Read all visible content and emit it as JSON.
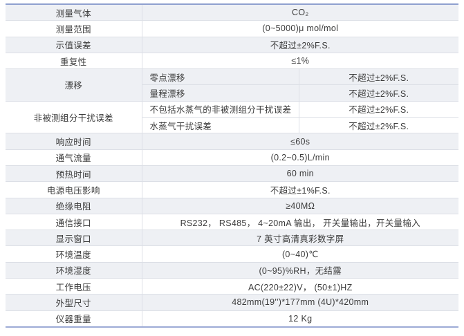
{
  "accent": {
    "line_color": "#8fa0cf",
    "band_color": "#eef0f4",
    "text_color": "#3b3b3b"
  },
  "table": {
    "rows": [
      {
        "label": "测量气体",
        "value": "CO₂"
      },
      {
        "label": "测量范围",
        "value": "(0~5000)μ mol/mol"
      },
      {
        "label": "示值误差",
        "value": "不超过±2%F.S."
      },
      {
        "label": "重复性",
        "value": "≤1%"
      },
      {
        "label": "漂移",
        "subrows": [
          {
            "name": "零点漂移",
            "value": "不超过±2%F.S."
          },
          {
            "name": "量程漂移",
            "value": "不超过±2%F.S."
          }
        ]
      },
      {
        "label": "非被测组分干扰误差",
        "subrows": [
          {
            "name": "不包括水蒸气的非被测组分干扰误差",
            "value": "不超过±2%F.S."
          },
          {
            "name": "水蒸气干扰误差",
            "value": "不超过±2%F.S."
          }
        ]
      },
      {
        "label": "响应时间",
        "value": "≤60s"
      },
      {
        "label": "通气流量",
        "value": "(0.2~0.5)L/min"
      },
      {
        "label": "预热时间",
        "value": "60 min"
      },
      {
        "label": "电源电压影响",
        "value": "不超过±1%F.S."
      },
      {
        "label": "绝缘电阻",
        "value": "≥40MΩ"
      },
      {
        "label": "通信接口",
        "value": "RS232， RS485， 4~20mA 输出， 开关量输出，开关量输入"
      },
      {
        "label": "显示窗口",
        "value": "7 英寸高清真彩数字屏"
      },
      {
        "label": "环境温度",
        "value": "(0~40)℃"
      },
      {
        "label": "环境湿度",
        "value": "(0~95)%RH，无结露"
      },
      {
        "label": "工作电压",
        "value": "AC(220±22)V， (50±1)HZ"
      },
      {
        "label": "外型尺寸",
        "value": "482mm(19'')*177mm (4U)*420mm"
      },
      {
        "label": "仪器重量",
        "value": "12 Kg"
      }
    ]
  }
}
